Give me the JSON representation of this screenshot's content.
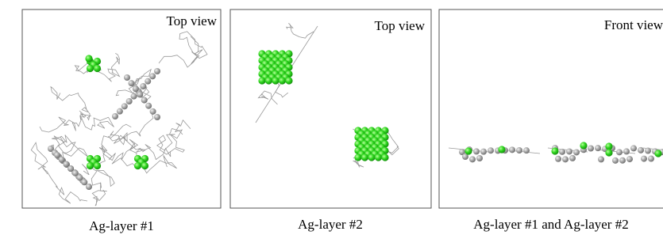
{
  "panels": [
    {
      "view": "Top view",
      "caption": "Ag-layer #1"
    },
    {
      "view": "Top view",
      "caption": "Ag-layer #2"
    },
    {
      "view": "Front view",
      "caption": "Ag-layer #1 and Ag-layer #2"
    }
  ]
}
